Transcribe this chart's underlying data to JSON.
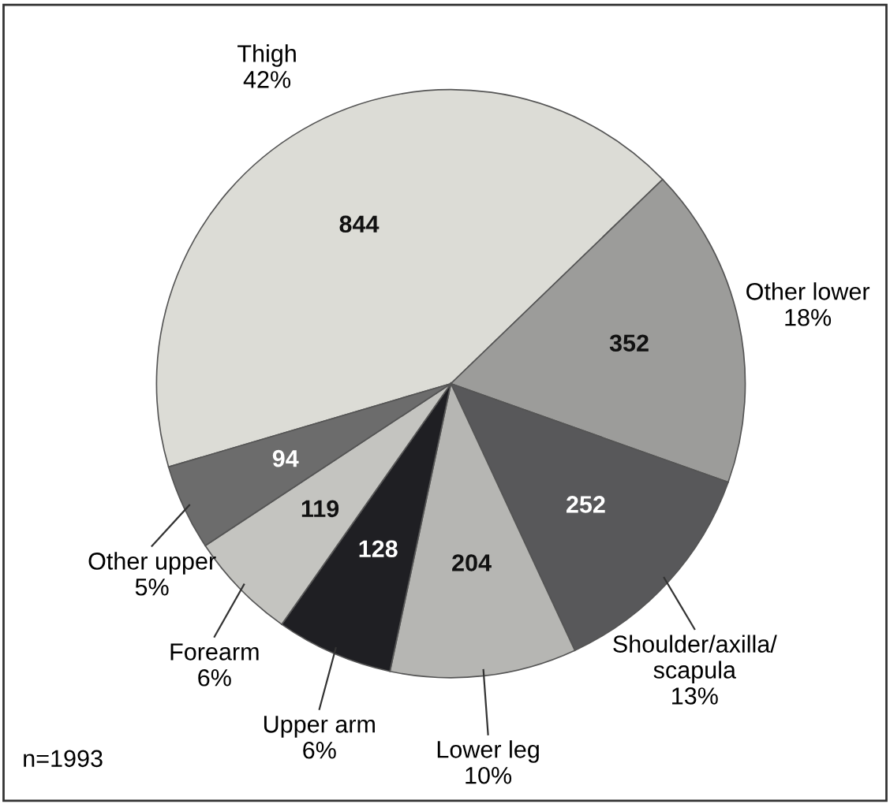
{
  "chart_data": {
    "type": "pie",
    "categories": [
      "Thigh\n42%",
      "Other lower\n18%",
      "Shoulder/axilla/\nscapula\n13%",
      "Lower leg\n10%",
      "Upper arm\n6%",
      "Forearm\n6%",
      "Other upper\n5%"
    ],
    "values": [
      844,
      352,
      252,
      204,
      128,
      119,
      94
    ],
    "colors": [
      "#dcdcd6",
      "#9c9c9a",
      "#58585a",
      "#b6b6b3",
      "#1f1f23",
      "#c4c4c0",
      "#6c6c6c"
    ],
    "data_labels": true,
    "legend": false,
    "annotations": [
      "n=1993"
    ]
  }
}
